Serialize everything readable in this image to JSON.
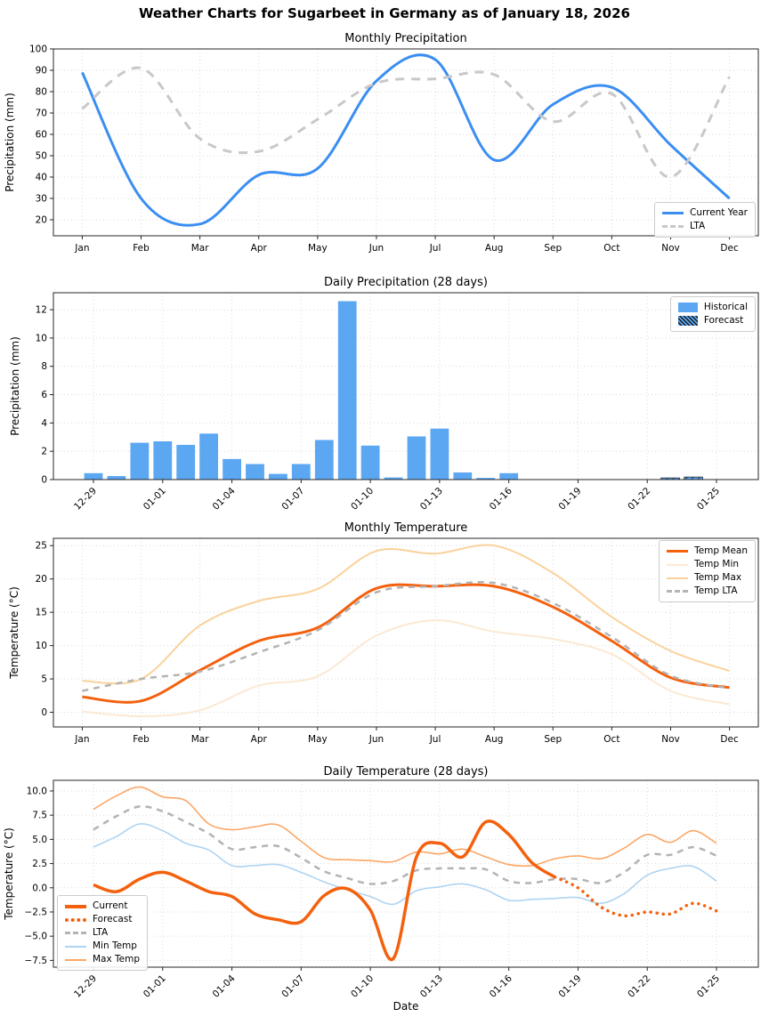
{
  "suptitle": "Weather Charts for Sugarbeet in Germany as of January 18, 2026",
  "colors": {
    "current_year_blue": "#3b8ef2",
    "bar_blue": "#5ca7f2",
    "lta_light_gray": "#c8c8c8",
    "temp_mean_orange": "#f4610e",
    "temp_min_peach": "#fbe9d2",
    "temp_max_tan": "#fad29b",
    "temp_lta_gray": "#b3b3b3",
    "daily_min_blue": "#aed4f2",
    "daily_max_salmon": "#fba766",
    "grid_gray": "#d4d4d4",
    "spine_dark": "#262626"
  },
  "chart_data": [
    {
      "id": "monthly_precip",
      "type": "line",
      "title": "Monthly Precipitation",
      "xlabel": "",
      "ylabel": "Precipitation (mm)",
      "categories": [
        "Jan",
        "Feb",
        "Mar",
        "Apr",
        "May",
        "Jun",
        "Jul",
        "Aug",
        "Sep",
        "Oct",
        "Nov",
        "Dec"
      ],
      "y_ticks": [
        20,
        30,
        40,
        50,
        60,
        70,
        80,
        90,
        100
      ],
      "ylim": [
        12.5,
        100
      ],
      "grid": true,
      "legend_position": "lower right",
      "series": [
        {
          "name": "Current Year",
          "color": "#3b8ef2",
          "style": "solid",
          "width": 3,
          "values": [
            89,
            30,
            18,
            41,
            44,
            85,
            95,
            48,
            74,
            82,
            55,
            30
          ]
        },
        {
          "name": "LTA",
          "color": "#c8c8c8",
          "style": "dashed",
          "width": 3,
          "values": [
            72,
            91,
            58,
            52,
            67,
            84,
            86,
            88,
            66,
            79,
            40,
            87
          ]
        }
      ]
    },
    {
      "id": "daily_precip",
      "type": "bar",
      "title": "Daily Precipitation (28 days)",
      "xlabel": "",
      "ylabel": "Precipitation (mm)",
      "dates": [
        "12-29",
        "12-30",
        "12-31",
        "01-01",
        "01-02",
        "01-03",
        "01-04",
        "01-05",
        "01-06",
        "01-07",
        "01-08",
        "01-09",
        "01-10",
        "01-11",
        "01-12",
        "01-13",
        "01-14",
        "01-15",
        "01-16",
        "01-17",
        "01-18",
        "01-19",
        "01-20",
        "01-21",
        "01-22",
        "01-23",
        "01-24",
        "01-25"
      ],
      "x_ticklabels": [
        "12-29",
        "01-01",
        "01-04",
        "01-07",
        "01-10",
        "01-13",
        "01-16",
        "01-19",
        "01-22",
        "01-25"
      ],
      "y_ticks": [
        0,
        2,
        4,
        6,
        8,
        10,
        12
      ],
      "ylim": [
        0,
        13.2
      ],
      "grid": true,
      "legend_position": "upper right",
      "series": [
        {
          "name": "Historical",
          "color": "#5ca7f2",
          "hatch": false,
          "values": [
            0.45,
            0.25,
            2.6,
            2.7,
            2.45,
            3.25,
            1.45,
            1.1,
            0.4,
            1.1,
            2.8,
            12.6,
            2.4,
            0.15,
            3.05,
            3.6,
            0.5,
            0.12,
            0.45,
            0,
            0,
            null,
            null,
            null,
            null,
            null,
            null,
            null
          ]
        },
        {
          "name": "Forecast",
          "color": "#5ca7f2",
          "hatch": true,
          "values": [
            null,
            null,
            null,
            null,
            null,
            null,
            null,
            null,
            null,
            null,
            null,
            null,
            null,
            null,
            null,
            null,
            null,
            null,
            null,
            null,
            null,
            0,
            0,
            0,
            0,
            0.12,
            0.18,
            0
          ]
        }
      ]
    },
    {
      "id": "monthly_temp",
      "type": "line",
      "title": "Monthly Temperature",
      "xlabel": "",
      "ylabel": "Temperature (°C)",
      "categories": [
        "Jan",
        "Feb",
        "Mar",
        "Apr",
        "May",
        "Jun",
        "Jul",
        "Aug",
        "Sep",
        "Oct",
        "Nov",
        "Dec"
      ],
      "y_ticks": [
        0,
        5,
        10,
        15,
        20,
        25
      ],
      "ylim": [
        -2.2,
        26.1
      ],
      "grid": true,
      "legend_position": "upper right",
      "series": [
        {
          "name": "Temp Mean",
          "color": "#f4610e",
          "style": "solid",
          "width": 3,
          "values": [
            2.3,
            1.7,
            6.3,
            10.7,
            12.7,
            18.6,
            18.9,
            18.9,
            15.8,
            10.7,
            5.2,
            3.7
          ]
        },
        {
          "name": "Temp Min",
          "color": "#fbe9d2",
          "style": "solid",
          "width": 2,
          "values": [
            0.1,
            -0.6,
            0.3,
            4.0,
            5.4,
            11.5,
            13.8,
            12.1,
            11.0,
            8.7,
            3.2,
            1.2
          ]
        },
        {
          "name": "Temp Max",
          "color": "#fad29b",
          "style": "solid",
          "width": 2,
          "values": [
            4.7,
            5.0,
            13.0,
            16.7,
            18.5,
            24.2,
            23.8,
            25.0,
            20.9,
            14.3,
            9.2,
            6.2
          ]
        },
        {
          "name": "Temp LTA",
          "color": "#b3b3b3",
          "style": "dashed",
          "width": 2.5,
          "values": [
            3.2,
            5.0,
            6.1,
            9.0,
            12.3,
            18.0,
            18.9,
            19.4,
            16.4,
            11.3,
            5.5,
            3.6
          ]
        }
      ]
    },
    {
      "id": "daily_temp",
      "type": "line",
      "title": "Daily Temperature (28 days)",
      "xlabel": "Date",
      "ylabel": "Temperature (°C)",
      "dates": [
        "12-29",
        "12-30",
        "12-31",
        "01-01",
        "01-02",
        "01-03",
        "01-04",
        "01-05",
        "01-06",
        "01-07",
        "01-08",
        "01-09",
        "01-10",
        "01-11",
        "01-12",
        "01-13",
        "01-14",
        "01-15",
        "01-16",
        "01-17",
        "01-18",
        "01-19",
        "01-20",
        "01-21",
        "01-22",
        "01-23",
        "01-24",
        "01-25"
      ],
      "x_ticklabels": [
        "12-29",
        "01-01",
        "01-04",
        "01-07",
        "01-10",
        "01-13",
        "01-16",
        "01-19",
        "01-22",
        "01-25"
      ],
      "y_ticks": [
        -7.5,
        -5.0,
        -2.5,
        0.0,
        2.5,
        5.0,
        7.5,
        10.0
      ],
      "ylim": [
        -8.2,
        11.1
      ],
      "grid": true,
      "legend_position": "lower left",
      "series": [
        {
          "name": "Current",
          "color": "#f4610e",
          "style": "solid",
          "width": 3.5,
          "values": [
            0.3,
            -0.4,
            0.9,
            1.6,
            0.7,
            -0.4,
            -0.9,
            -2.7,
            -3.3,
            -3.5,
            -0.8,
            -0.1,
            -2.3,
            -7.3,
            3.2,
            4.6,
            3.2,
            6.8,
            5.5,
            2.6,
            1.1,
            null,
            null,
            null,
            null,
            null,
            null,
            null
          ]
        },
        {
          "name": "Forecast",
          "color": "#f4610e",
          "style": "dotted",
          "width": 3.5,
          "values": [
            null,
            null,
            null,
            null,
            null,
            null,
            null,
            null,
            null,
            null,
            null,
            null,
            null,
            null,
            null,
            null,
            null,
            null,
            null,
            null,
            1.1,
            0.0,
            -2.0,
            -2.9,
            -2.5,
            -2.7,
            -1.6,
            -2.4
          ]
        },
        {
          "name": "LTA",
          "color": "#b3b3b3",
          "style": "dashed",
          "width": 2.5,
          "values": [
            6.0,
            7.4,
            8.4,
            7.9,
            6.8,
            5.6,
            4.0,
            4.2,
            4.3,
            3.1,
            1.7,
            1.0,
            0.4,
            0.7,
            1.8,
            2.0,
            2.0,
            1.9,
            0.7,
            0.5,
            0.9,
            0.9,
            0.5,
            1.6,
            3.4,
            3.4,
            4.2,
            3.3
          ]
        },
        {
          "name": "Min Temp",
          "color": "#aed4f2",
          "style": "solid",
          "width": 1.6,
          "values": [
            4.2,
            5.3,
            6.6,
            5.9,
            4.6,
            3.9,
            2.3,
            2.3,
            2.4,
            1.6,
            0.6,
            -0.2,
            -0.9,
            -1.7,
            -0.3,
            0.1,
            0.4,
            -0.2,
            -1.3,
            -1.2,
            -1.1,
            -1.0,
            -1.6,
            -0.6,
            1.3,
            2.0,
            2.2,
            0.7
          ]
        },
        {
          "name": "Max Temp",
          "color": "#fba766",
          "style": "solid",
          "width": 1.6,
          "values": [
            8.1,
            9.5,
            10.4,
            9.4,
            9.0,
            6.6,
            6.0,
            6.3,
            6.5,
            4.8,
            3.1,
            2.9,
            2.8,
            2.7,
            3.7,
            3.5,
            4.0,
            3.2,
            2.4,
            2.3,
            3.0,
            3.3,
            3.0,
            4.1,
            5.5,
            4.7,
            5.9,
            4.6
          ]
        }
      ]
    }
  ]
}
